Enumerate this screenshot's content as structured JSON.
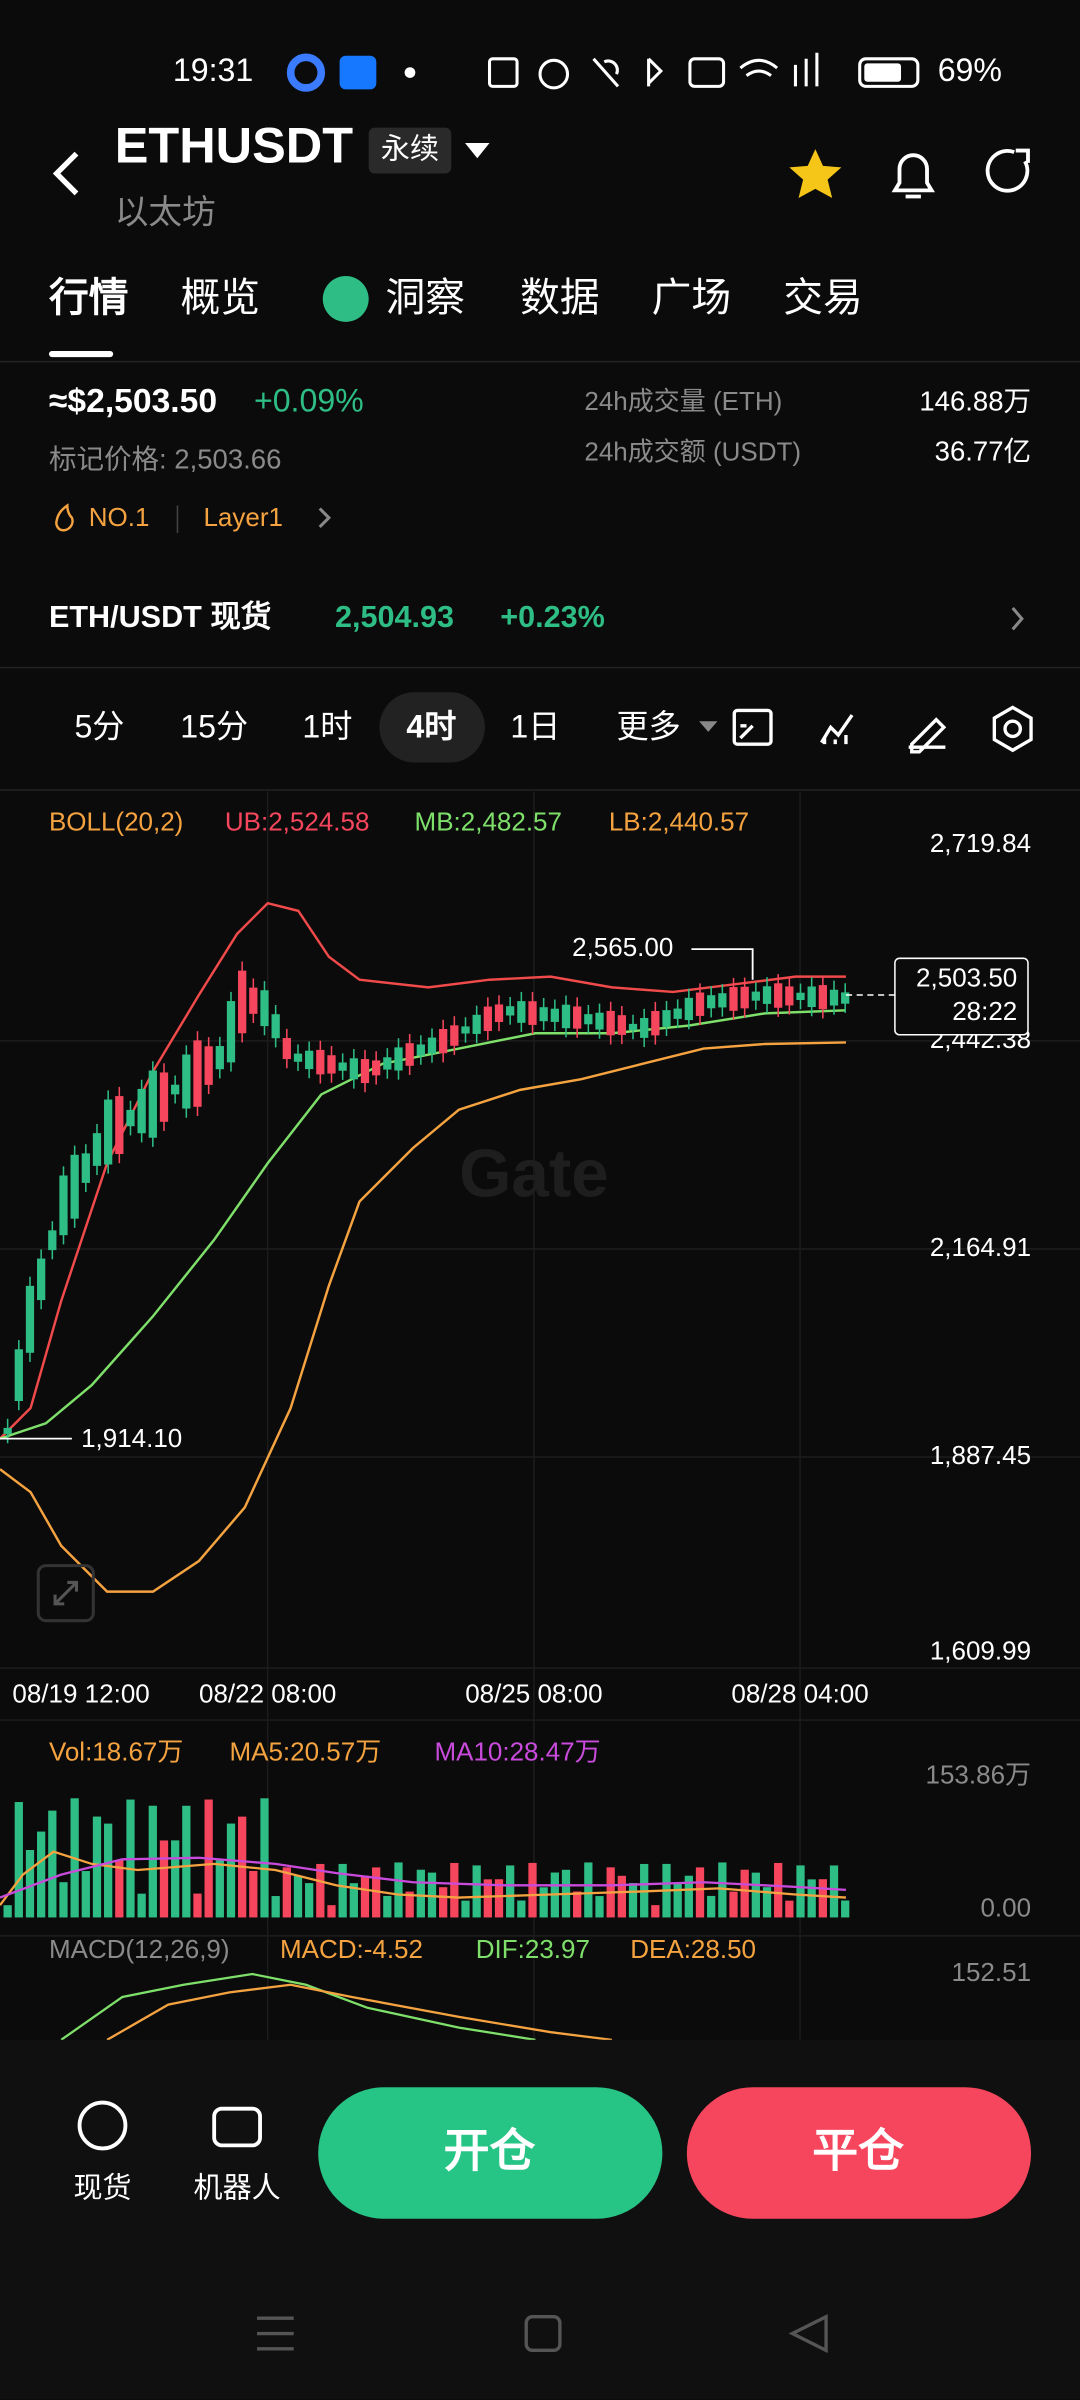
{
  "status_bar": {
    "time": "19:31",
    "battery": "69%"
  },
  "header": {
    "symbol": "ETHUSDT",
    "tag": "永续",
    "subtitle": "以太坊"
  },
  "tabs": [
    "行情",
    "概览",
    "洞察",
    "数据",
    "广场",
    "交易"
  ],
  "price": {
    "last": "≈$2,503.50",
    "change": "+0.09%",
    "mark": "标记价格: 2,503.66"
  },
  "stats": [
    {
      "label": "24h成交量 (ETH)",
      "value": "146.88万"
    },
    {
      "label": "24h成交额 (USDT)",
      "value": "36.77亿"
    }
  ],
  "tags": [
    "NO.1",
    "Layer1"
  ],
  "spot": {
    "pair": "ETH/USDT 现货",
    "price": "2,504.93",
    "change": "+0.23%"
  },
  "intervals": [
    "5分",
    "15分",
    "1时",
    "4时",
    "1日",
    "更多"
  ],
  "boll": {
    "header": "BOLL(20,2)",
    "ub": "UB:2,524.58",
    "mb": "MB:2,482.57",
    "lb": "LB:2,440.57"
  },
  "price_axis": [
    "2,719.84",
    "2,442.38",
    "2,164.91",
    "1,887.45",
    "1,609.99"
  ],
  "markers": {
    "high": "2,565.00",
    "low": "1,914.10",
    "current": "2,503.50",
    "countdown": "28:22"
  },
  "time_axis": [
    "08/19 12:00",
    "08/22 08:00",
    "08/25 08:00",
    "08/28 04:00"
  ],
  "volume": {
    "vol": "Vol:18.67万",
    "ma5": "MA5:20.57万",
    "ma10": "MA10:28.47万",
    "axis": [
      "153.86万",
      "0.00"
    ]
  },
  "macd": {
    "header": "MACD(12,26,9)",
    "macd": "MACD:-4.52",
    "dif": "DIF:23.97",
    "dea": "DEA:28.50",
    "axis": [
      "152.51"
    ]
  },
  "bottom": {
    "items": [
      "现货",
      "机器人"
    ],
    "open": "开仓",
    "close": "平仓"
  }
}
